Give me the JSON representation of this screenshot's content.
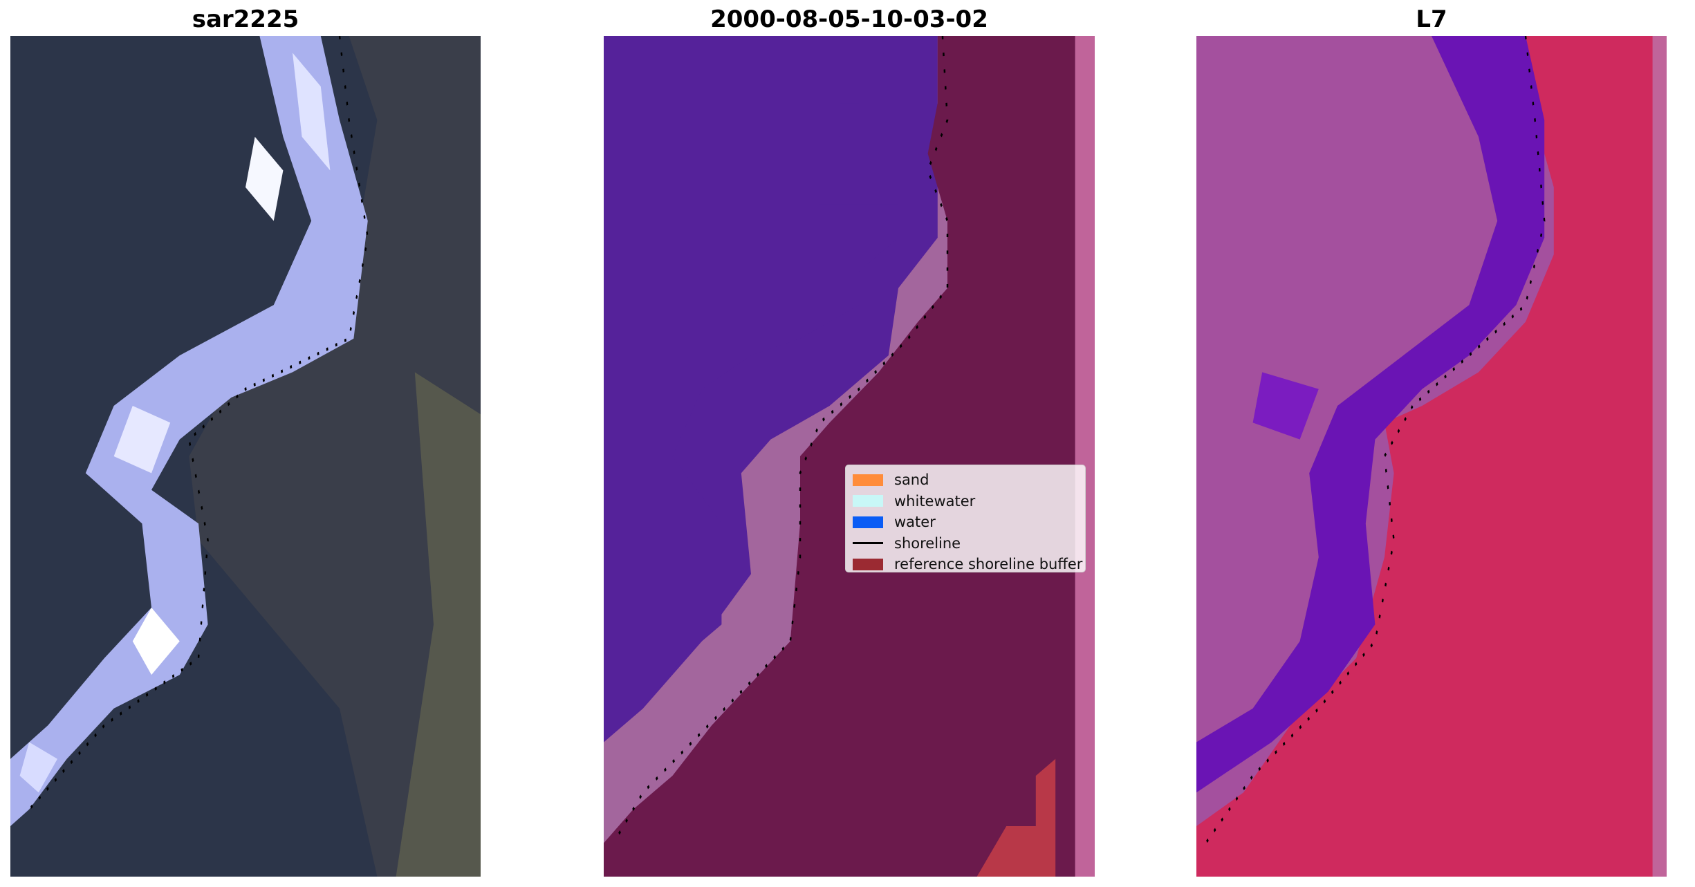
{
  "panels": [
    {
      "title": "sar2225",
      "image": "false-color satellite image of coastline"
    },
    {
      "title": "2000-08-05-10-03-02",
      "image": "classified image of water and sand"
    },
    {
      "title": "L7",
      "image": "multispectral satellite image of coastline"
    }
  ],
  "legend": {
    "items": [
      {
        "label": "sand",
        "color": "#ff8c3a",
        "kind": "patch"
      },
      {
        "label": "whitewater",
        "color": "#c8f7f7",
        "kind": "patch"
      },
      {
        "label": "water",
        "color": "#0a5cf5",
        "kind": "patch"
      },
      {
        "label": "shoreline",
        "color": "#000000",
        "kind": "line"
      },
      {
        "label": "reference shoreline buffer",
        "color": "#9b2a32",
        "kind": "patch"
      }
    ]
  },
  "colors": {
    "sar_water": "#2c3549",
    "sar_sand": "#3b3f4c",
    "sar_surf": "#aab1ee",
    "class_water": "#55229a",
    "class_sand": "#a3669d",
    "class_buffer": "#6b1a4c",
    "l7_water": "#a4509e",
    "l7_surf": "#6a14b4",
    "l7_land": "#cf2a5e"
  }
}
